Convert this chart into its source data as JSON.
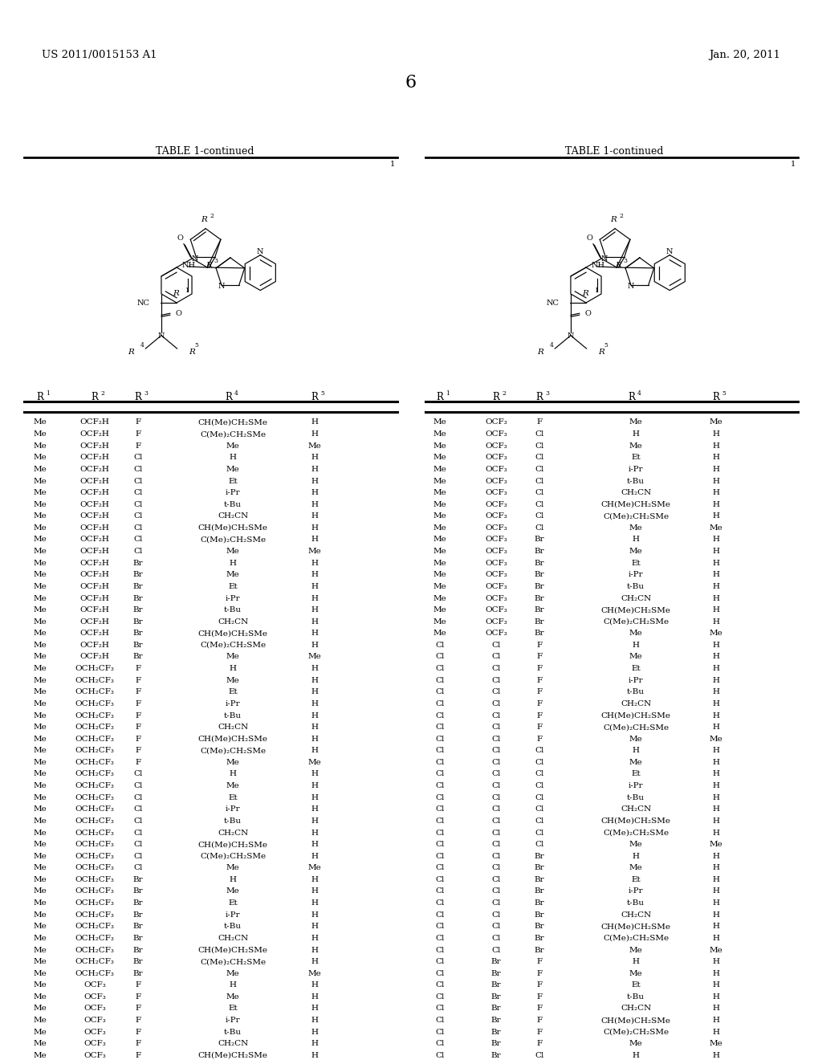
{
  "header_left": "US 2011/0015153 A1",
  "header_right": "Jan. 20, 2011",
  "page_number": "6",
  "table_title": "TABLE 1-continued",
  "background_color": "#ffffff",
  "left_table_data": [
    [
      "Me",
      "OCF₂H",
      "F",
      "CH(Me)CH₂SMe",
      "H"
    ],
    [
      "Me",
      "OCF₂H",
      "F",
      "C(Me)₂CH₂SMe",
      "H"
    ],
    [
      "Me",
      "OCF₂H",
      "F",
      "Me",
      "Me"
    ],
    [
      "Me",
      "OCF₂H",
      "Cl",
      "H",
      "H"
    ],
    [
      "Me",
      "OCF₂H",
      "Cl",
      "Me",
      "H"
    ],
    [
      "Me",
      "OCF₂H",
      "Cl",
      "Et",
      "H"
    ],
    [
      "Me",
      "OCF₂H",
      "Cl",
      "i-Pr",
      "H"
    ],
    [
      "Me",
      "OCF₂H",
      "Cl",
      "t-Bu",
      "H"
    ],
    [
      "Me",
      "OCF₂H",
      "Cl",
      "CH₂CN",
      "H"
    ],
    [
      "Me",
      "OCF₂H",
      "Cl",
      "CH(Me)CH₂SMe",
      "H"
    ],
    [
      "Me",
      "OCF₂H",
      "Cl",
      "C(Me)₂CH₂SMe",
      "H"
    ],
    [
      "Me",
      "OCF₂H",
      "Cl",
      "Me",
      "Me"
    ],
    [
      "Me",
      "OCF₂H",
      "Br",
      "H",
      "H"
    ],
    [
      "Me",
      "OCF₂H",
      "Br",
      "Me",
      "H"
    ],
    [
      "Me",
      "OCF₂H",
      "Br",
      "Et",
      "H"
    ],
    [
      "Me",
      "OCF₂H",
      "Br",
      "i-Pr",
      "H"
    ],
    [
      "Me",
      "OCF₂H",
      "Br",
      "t-Bu",
      "H"
    ],
    [
      "Me",
      "OCF₂H",
      "Br",
      "CH₂CN",
      "H"
    ],
    [
      "Me",
      "OCF₂H",
      "Br",
      "CH(Me)CH₂SMe",
      "H"
    ],
    [
      "Me",
      "OCF₂H",
      "Br",
      "C(Me)₂CH₂SMe",
      "H"
    ],
    [
      "Me",
      "OCF₂H",
      "Br",
      "Me",
      "Me"
    ],
    [
      "Me",
      "OCH₂CF₃",
      "F",
      "H",
      "H"
    ],
    [
      "Me",
      "OCH₂CF₃",
      "F",
      "Me",
      "H"
    ],
    [
      "Me",
      "OCH₂CF₃",
      "F",
      "Et",
      "H"
    ],
    [
      "Me",
      "OCH₂CF₃",
      "F",
      "i-Pr",
      "H"
    ],
    [
      "Me",
      "OCH₂CF₃",
      "F",
      "t-Bu",
      "H"
    ],
    [
      "Me",
      "OCH₂CF₃",
      "F",
      "CH₂CN",
      "H"
    ],
    [
      "Me",
      "OCH₂CF₃",
      "F",
      "CH(Me)CH₂SMe",
      "H"
    ],
    [
      "Me",
      "OCH₂CF₃",
      "F",
      "C(Me)₂CH₂SMe",
      "H"
    ],
    [
      "Me",
      "OCH₂CF₃",
      "F",
      "Me",
      "Me"
    ],
    [
      "Me",
      "OCH₂CF₃",
      "Cl",
      "H",
      "H"
    ],
    [
      "Me",
      "OCH₂CF₃",
      "Cl",
      "Me",
      "H"
    ],
    [
      "Me",
      "OCH₂CF₃",
      "Cl",
      "Et",
      "H"
    ],
    [
      "Me",
      "OCH₂CF₃",
      "Cl",
      "i-Pr",
      "H"
    ],
    [
      "Me",
      "OCH₂CF₃",
      "Cl",
      "t-Bu",
      "H"
    ],
    [
      "Me",
      "OCH₂CF₃",
      "Cl",
      "CH₂CN",
      "H"
    ],
    [
      "Me",
      "OCH₂CF₃",
      "Cl",
      "CH(Me)CH₂SMe",
      "H"
    ],
    [
      "Me",
      "OCH₂CF₃",
      "Cl",
      "C(Me)₂CH₂SMe",
      "H"
    ],
    [
      "Me",
      "OCH₂CF₃",
      "Cl",
      "Me",
      "Me"
    ],
    [
      "Me",
      "OCH₂CF₃",
      "Br",
      "H",
      "H"
    ],
    [
      "Me",
      "OCH₂CF₃",
      "Br",
      "Me",
      "H"
    ],
    [
      "Me",
      "OCH₂CF₃",
      "Br",
      "Et",
      "H"
    ],
    [
      "Me",
      "OCH₂CF₃",
      "Br",
      "i-Pr",
      "H"
    ],
    [
      "Me",
      "OCH₂CF₃",
      "Br",
      "t-Bu",
      "H"
    ],
    [
      "Me",
      "OCH₂CF₃",
      "Br",
      "CH₂CN",
      "H"
    ],
    [
      "Me",
      "OCH₂CF₃",
      "Br",
      "CH(Me)CH₂SMe",
      "H"
    ],
    [
      "Me",
      "OCH₂CF₃",
      "Br",
      "C(Me)₂CH₂SMe",
      "H"
    ],
    [
      "Me",
      "OCH₂CF₃",
      "Br",
      "Me",
      "Me"
    ],
    [
      "Me",
      "OCF₃",
      "F",
      "H",
      "H"
    ],
    [
      "Me",
      "OCF₃",
      "F",
      "Me",
      "H"
    ],
    [
      "Me",
      "OCF₃",
      "F",
      "Et",
      "H"
    ],
    [
      "Me",
      "OCF₃",
      "F",
      "i-Pr",
      "H"
    ],
    [
      "Me",
      "OCF₃",
      "F",
      "t-Bu",
      "H"
    ],
    [
      "Me",
      "OCF₃",
      "F",
      "CH₂CN",
      "H"
    ],
    [
      "Me",
      "OCF₃",
      "F",
      "CH(Me)CH₂SMe",
      "H"
    ]
  ],
  "right_table_data": [
    [
      "Me",
      "OCF₃",
      "F",
      "Me",
      "Me"
    ],
    [
      "Me",
      "OCF₃",
      "Cl",
      "H",
      "H"
    ],
    [
      "Me",
      "OCF₃",
      "Cl",
      "Me",
      "H"
    ],
    [
      "Me",
      "OCF₃",
      "Cl",
      "Et",
      "H"
    ],
    [
      "Me",
      "OCF₃",
      "Cl",
      "i-Pr",
      "H"
    ],
    [
      "Me",
      "OCF₃",
      "Cl",
      "t-Bu",
      "H"
    ],
    [
      "Me",
      "OCF₃",
      "Cl",
      "CH₂CN",
      "H"
    ],
    [
      "Me",
      "OCF₃",
      "Cl",
      "CH(Me)CH₂SMe",
      "H"
    ],
    [
      "Me",
      "OCF₃",
      "Cl",
      "C(Me)₂CH₂SMe",
      "H"
    ],
    [
      "Me",
      "OCF₃",
      "Cl",
      "Me",
      "Me"
    ],
    [
      "Me",
      "OCF₃",
      "Br",
      "H",
      "H"
    ],
    [
      "Me",
      "OCF₃",
      "Br",
      "Me",
      "H"
    ],
    [
      "Me",
      "OCF₃",
      "Br",
      "Et",
      "H"
    ],
    [
      "Me",
      "OCF₃",
      "Br",
      "i-Pr",
      "H"
    ],
    [
      "Me",
      "OCF₃",
      "Br",
      "t-Bu",
      "H"
    ],
    [
      "Me",
      "OCF₃",
      "Br",
      "CH₂CN",
      "H"
    ],
    [
      "Me",
      "OCF₃",
      "Br",
      "CH(Me)CH₂SMe",
      "H"
    ],
    [
      "Me",
      "OCF₃",
      "Br",
      "C(Me)₂CH₂SMe",
      "H"
    ],
    [
      "Me",
      "OCF₃",
      "Br",
      "Me",
      "Me"
    ],
    [
      "Cl",
      "Cl",
      "F",
      "H",
      "H"
    ],
    [
      "Cl",
      "Cl",
      "F",
      "Me",
      "H"
    ],
    [
      "Cl",
      "Cl",
      "F",
      "Et",
      "H"
    ],
    [
      "Cl",
      "Cl",
      "F",
      "i-Pr",
      "H"
    ],
    [
      "Cl",
      "Cl",
      "F",
      "t-Bu",
      "H"
    ],
    [
      "Cl",
      "Cl",
      "F",
      "CH₂CN",
      "H"
    ],
    [
      "Cl",
      "Cl",
      "F",
      "CH(Me)CH₂SMe",
      "H"
    ],
    [
      "Cl",
      "Cl",
      "F",
      "C(Me)₂CH₂SMe",
      "H"
    ],
    [
      "Cl",
      "Cl",
      "F",
      "Me",
      "Me"
    ],
    [
      "Cl",
      "Cl",
      "Cl",
      "H",
      "H"
    ],
    [
      "Cl",
      "Cl",
      "Cl",
      "Me",
      "H"
    ],
    [
      "Cl",
      "Cl",
      "Cl",
      "Et",
      "H"
    ],
    [
      "Cl",
      "Cl",
      "Cl",
      "i-Pr",
      "H"
    ],
    [
      "Cl",
      "Cl",
      "Cl",
      "t-Bu",
      "H"
    ],
    [
      "Cl",
      "Cl",
      "Cl",
      "CH₂CN",
      "H"
    ],
    [
      "Cl",
      "Cl",
      "Cl",
      "CH(Me)CH₂SMe",
      "H"
    ],
    [
      "Cl",
      "Cl",
      "Cl",
      "C(Me)₂CH₂SMe",
      "H"
    ],
    [
      "Cl",
      "Cl",
      "Cl",
      "Me",
      "Me"
    ],
    [
      "Cl",
      "Cl",
      "Br",
      "H",
      "H"
    ],
    [
      "Cl",
      "Cl",
      "Br",
      "Me",
      "H"
    ],
    [
      "Cl",
      "Cl",
      "Br",
      "Et",
      "H"
    ],
    [
      "Cl",
      "Cl",
      "Br",
      "i-Pr",
      "H"
    ],
    [
      "Cl",
      "Cl",
      "Br",
      "t-Bu",
      "H"
    ],
    [
      "Cl",
      "Cl",
      "Br",
      "CH₂CN",
      "H"
    ],
    [
      "Cl",
      "Cl",
      "Br",
      "CH(Me)CH₂SMe",
      "H"
    ],
    [
      "Cl",
      "Cl",
      "Br",
      "C(Me)₂CH₂SMe",
      "H"
    ],
    [
      "Cl",
      "Cl",
      "Br",
      "Me",
      "Me"
    ],
    [
      "Cl",
      "Br",
      "F",
      "H",
      "H"
    ],
    [
      "Cl",
      "Br",
      "F",
      "Me",
      "H"
    ],
    [
      "Cl",
      "Br",
      "F",
      "Et",
      "H"
    ],
    [
      "Cl",
      "Br",
      "F",
      "t-Bu",
      "H"
    ],
    [
      "Cl",
      "Br",
      "F",
      "CH₂CN",
      "H"
    ],
    [
      "Cl",
      "Br",
      "F",
      "CH(Me)CH₂SMe",
      "H"
    ],
    [
      "Cl",
      "Br",
      "F",
      "C(Me)₂CH₂SMe",
      "H"
    ],
    [
      "Cl",
      "Br",
      "F",
      "Me",
      "Me"
    ],
    [
      "Cl",
      "Br",
      "Cl",
      "H",
      "H"
    ]
  ]
}
